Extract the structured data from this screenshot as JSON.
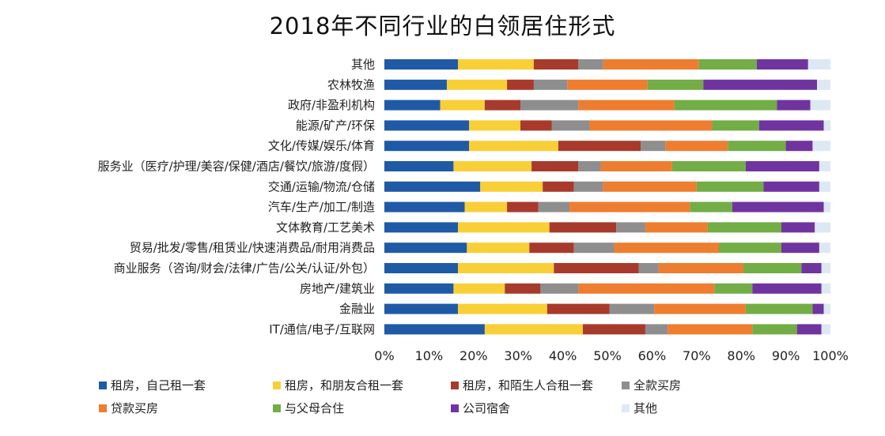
{
  "chart_data": {
    "type": "bar",
    "orientation": "horizontal",
    "stacked": true,
    "title": "2018年不同行业的白领居住形式",
    "xlim": [
      0,
      100
    ],
    "x_ticks": [
      "0%",
      "10%",
      "20%",
      "30%",
      "40%",
      "50%",
      "60%",
      "70%",
      "80%",
      "90%",
      "100%"
    ],
    "grid": false,
    "legend_position": "bottom",
    "categories": [
      "其他",
      "农林牧渔",
      "政府/非盈利机构",
      "能源/矿产/环保",
      "文化/传媒/娱乐/体育",
      "服务业（医疗/护理/美容/保健/酒店/餐饮/旅游/度假）",
      "交通/运输/物流/仓储",
      "汽车/生产/加工/制造",
      "文体教育/工艺美术",
      "贸易/批发/零售/租赁业/快速消费品/耐用消费品",
      "商业服务（咨询/财会/法律/广告/公关/认证/外包）",
      "房地产/建筑业",
      "金融业",
      "IT/通信/电子/互联网"
    ],
    "series": [
      {
        "name": "租房，自己租一套",
        "color": "#1f5aa6",
        "values": [
          16.5,
          14.0,
          12.5,
          19.0,
          19.0,
          15.5,
          21.5,
          18.0,
          16.5,
          18.5,
          16.5,
          15.5,
          16.5,
          22.5
        ]
      },
      {
        "name": "租房，和朋友合租一套",
        "color": "#f8cf37",
        "values": [
          17.0,
          13.5,
          10.0,
          11.5,
          20.0,
          17.5,
          14.0,
          9.5,
          20.5,
          14.0,
          21.5,
          11.5,
          20.0,
          22.0
        ]
      },
      {
        "name": "租房，和陌生人合租一套",
        "color": "#a83a2c",
        "values": [
          10.0,
          6.0,
          8.0,
          7.0,
          18.5,
          10.5,
          7.0,
          7.0,
          15.0,
          10.0,
          19.0,
          8.0,
          14.0,
          14.0
        ]
      },
      {
        "name": "全款买房",
        "color": "#8e8e8e",
        "values": [
          5.5,
          7.5,
          13.0,
          8.5,
          5.5,
          5.0,
          6.5,
          7.0,
          6.5,
          9.0,
          4.5,
          8.5,
          10.0,
          5.0
        ]
      },
      {
        "name": "贷款买房",
        "color": "#ee7d30",
        "values": [
          21.5,
          18.0,
          21.5,
          27.5,
          14.0,
          16.0,
          21.0,
          27.0,
          14.0,
          23.5,
          19.0,
          30.5,
          20.5,
          19.0
        ]
      },
      {
        "name": "与父母合住",
        "color": "#72ad46",
        "values": [
          13.0,
          12.5,
          23.0,
          10.5,
          13.0,
          16.5,
          15.0,
          9.5,
          16.5,
          14.0,
          13.0,
          8.5,
          15.0,
          10.0
        ]
      },
      {
        "name": "公司宿舍",
        "color": "#7034a0",
        "values": [
          11.5,
          25.5,
          7.5,
          14.5,
          6.0,
          16.5,
          12.5,
          20.5,
          7.5,
          8.5,
          4.5,
          15.5,
          2.5,
          5.5
        ]
      },
      {
        "name": "其他",
        "color": "#dde8f5",
        "values": [
          5.0,
          3.0,
          4.5,
          1.5,
          4.0,
          2.5,
          2.5,
          1.5,
          3.5,
          2.5,
          2.0,
          2.0,
          1.5,
          2.0
        ]
      }
    ]
  }
}
